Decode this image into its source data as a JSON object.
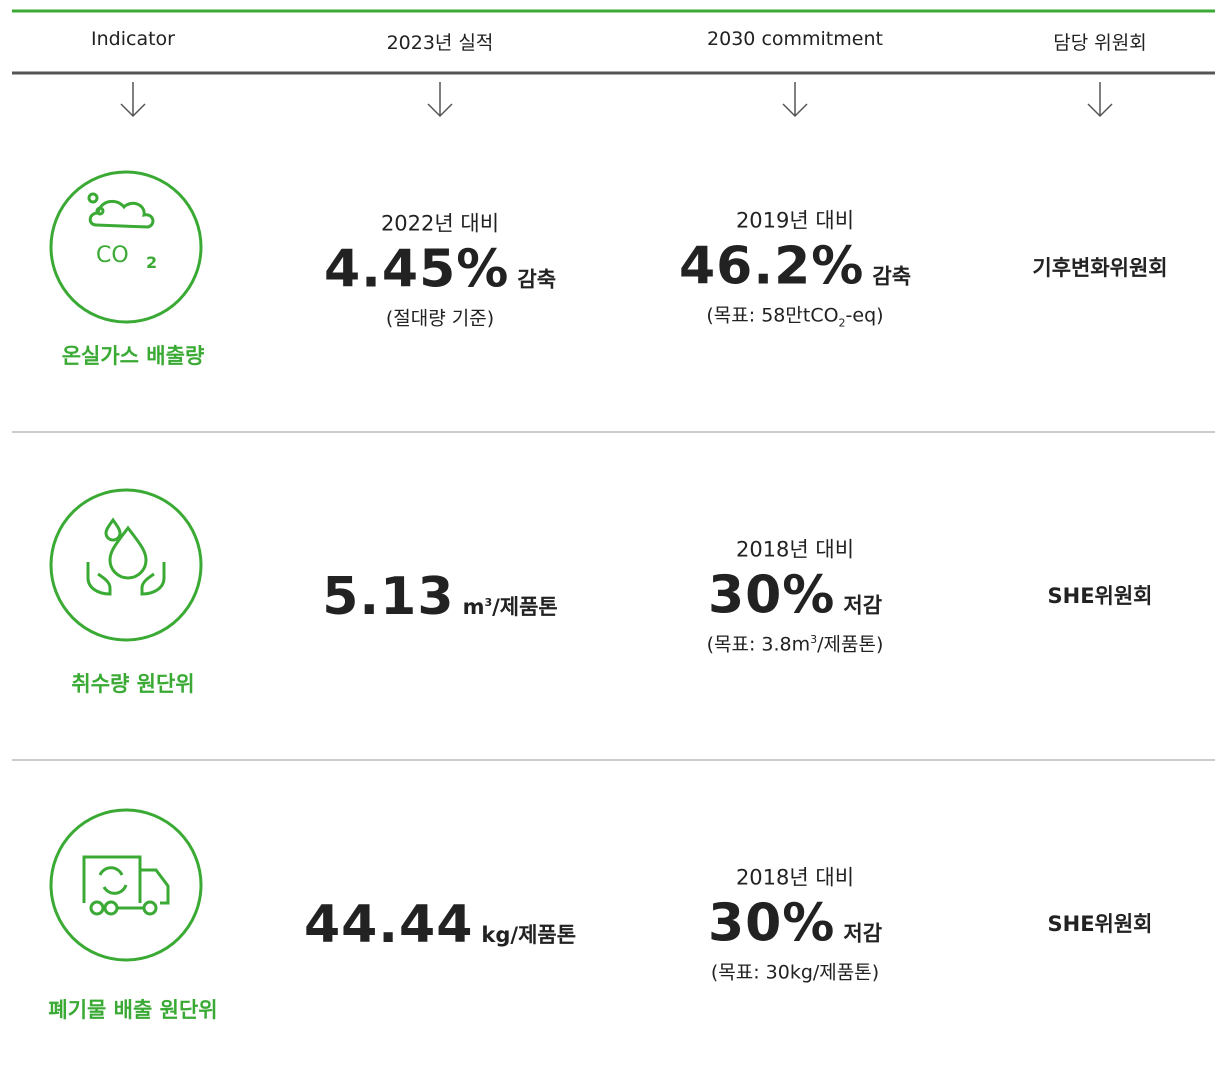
{
  "header": [
    "Indicator",
    "2023년 실적",
    "2030 commitment",
    "담당 위원회"
  ],
  "rows": [
    {
      "label": "온실가스 배출량",
      "actual": {
        "basis": "2022년 대비",
        "value": "4.45%",
        "unit": [
          {
            "text": "감축"
          }
        ],
        "note": [
          {
            "text": "(절대량 기준)"
          }
        ]
      },
      "target": {
        "basis": "2019년 대비",
        "value": "46.2%",
        "unit": [
          {
            "text": "감축"
          }
        ],
        "note": [
          {
            "text": "(목표: 58만tCO"
          },
          {
            "text": "2",
            "style": "sub"
          },
          {
            "text": "-eq)"
          }
        ]
      },
      "committee": "기후변화위원회"
    },
    {
      "label": "취수량 원단위",
      "actual": {
        "value": "5.13",
        "unit": [
          {
            "text": "m"
          },
          {
            "text": "3",
            "style": "sup"
          },
          {
            "text": "/제품톤"
          }
        ]
      },
      "target": {
        "basis": "2018년 대비",
        "value": "30%",
        "unit": [
          {
            "text": "저감"
          }
        ],
        "note": [
          {
            "text": "(목표: 3.8m"
          },
          {
            "text": "3",
            "style": "sup"
          },
          {
            "text": "/제품톤)"
          }
        ]
      },
      "committee": "SHE위원회"
    },
    {
      "label": "폐기물 배출 원단위",
      "actual": {
        "value": "44.44",
        "unit": [
          {
            "text": "kg/제품톤"
          }
        ]
      },
      "target": {
        "basis": "2018년 대비",
        "value": "30%",
        "unit": [
          {
            "text": "저감"
          }
        ],
        "note": [
          {
            "text": "(목표: 30kg/제품톤)"
          }
        ]
      },
      "committee": "SHE위원회"
    }
  ]
}
